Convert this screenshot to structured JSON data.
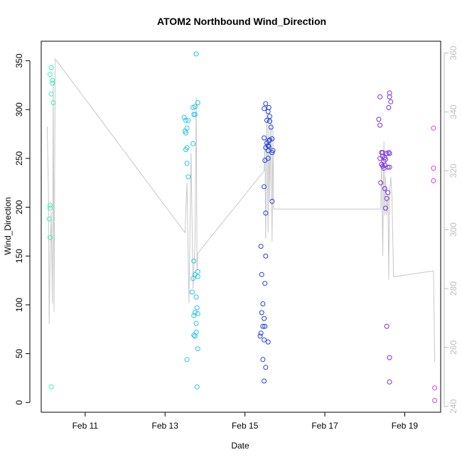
{
  "chart_data": {
    "type": "scatter",
    "title": "ATOM2 Northbound Wind_Direction",
    "xlabel": "Date",
    "ylabel": "Wind_Direction",
    "x_ticks": [
      {
        "label": "Feb 11",
        "value": 11
      },
      {
        "label": "Feb 13",
        "value": 13
      },
      {
        "label": "Feb 15",
        "value": 15
      },
      {
        "label": "Feb 17",
        "value": 17
      },
      {
        "label": "Feb 19",
        "value": 19
      }
    ],
    "y_ticks": [
      "0",
      "50",
      "100",
      "150",
      "200",
      "250",
      "300",
      "350"
    ],
    "y2_ticks": [
      "240",
      "260",
      "280",
      "300",
      "320",
      "340",
      "360"
    ],
    "xlim": [
      9.9,
      19.9
    ],
    "ylim": [
      -10,
      370
    ],
    "y2lim": [
      238,
      364
    ],
    "colors": {
      "frame": "#000000",
      "secondary_axis": "#bdbdbd",
      "line": "#c8c8c8"
    },
    "point_groups": [
      {
        "color": "#33f0b8",
        "points": [
          [
            10.15,
            343
          ],
          [
            10.12,
            336
          ],
          [
            10.18,
            330
          ],
          [
            10.18,
            327
          ],
          [
            10.15,
            316
          ],
          [
            10.2,
            307
          ],
          [
            10.12,
            202
          ],
          [
            10.12,
            199
          ],
          [
            10.1,
            188
          ],
          [
            10.12,
            169
          ],
          [
            10.15,
            16
          ]
        ]
      },
      {
        "color": "#22c6ec",
        "points": [
          [
            13.78,
            357
          ],
          [
            13.82,
            307
          ],
          [
            13.75,
            303
          ],
          [
            13.7,
            302
          ],
          [
            13.72,
            295
          ],
          [
            13.75,
            295
          ],
          [
            13.48,
            292
          ],
          [
            13.52,
            289
          ],
          [
            13.58,
            289
          ],
          [
            13.55,
            281
          ],
          [
            13.5,
            278
          ],
          [
            13.52,
            276
          ],
          [
            13.7,
            265
          ],
          [
            13.55,
            261
          ],
          [
            13.52,
            259
          ],
          [
            13.55,
            245
          ],
          [
            13.58,
            231
          ],
          [
            13.72,
            145
          ],
          [
            13.82,
            134
          ],
          [
            13.75,
            131
          ],
          [
            13.82,
            129
          ],
          [
            13.7,
            127
          ],
          [
            13.68,
            113
          ],
          [
            13.78,
            108
          ],
          [
            13.8,
            97
          ],
          [
            13.75,
            92
          ],
          [
            13.82,
            91
          ],
          [
            13.72,
            89
          ],
          [
            13.78,
            81
          ],
          [
            13.78,
            72
          ],
          [
            13.72,
            69
          ],
          [
            13.75,
            68
          ],
          [
            13.82,
            55
          ],
          [
            13.55,
            44
          ],
          [
            13.8,
            16
          ]
        ]
      },
      {
        "color": "#1f3ee6",
        "points": [
          [
            15.52,
            306
          ],
          [
            15.48,
            301
          ],
          [
            15.6,
            302
          ],
          [
            15.58,
            298
          ],
          [
            15.62,
            293
          ],
          [
            15.62,
            288
          ],
          [
            15.55,
            289
          ],
          [
            15.65,
            282
          ],
          [
            15.48,
            271
          ],
          [
            15.6,
            268
          ],
          [
            15.68,
            270
          ],
          [
            15.62,
            269
          ],
          [
            15.55,
            266
          ],
          [
            15.58,
            263
          ],
          [
            15.6,
            262
          ],
          [
            15.52,
            261
          ],
          [
            15.58,
            258
          ],
          [
            15.7,
            258
          ],
          [
            15.68,
            256
          ],
          [
            15.58,
            250
          ],
          [
            15.5,
            248
          ],
          [
            15.48,
            221
          ],
          [
            15.68,
            206
          ],
          [
            15.52,
            194
          ],
          [
            15.4,
            160
          ],
          [
            15.52,
            150
          ],
          [
            15.42,
            131
          ],
          [
            15.5,
            122
          ],
          [
            15.45,
            101
          ],
          [
            15.42,
            92
          ],
          [
            15.48,
            86
          ],
          [
            15.45,
            78
          ],
          [
            15.5,
            78
          ],
          [
            15.4,
            71
          ],
          [
            15.38,
            68
          ],
          [
            15.48,
            64
          ],
          [
            15.58,
            62
          ],
          [
            15.45,
            44
          ],
          [
            15.52,
            36
          ],
          [
            15.48,
            22
          ]
        ]
      },
      {
        "color": "#7a2ee6",
        "points": [
          [
            18.62,
            317
          ],
          [
            18.62,
            313
          ],
          [
            18.38,
            313
          ],
          [
            18.65,
            308
          ],
          [
            18.6,
            302
          ],
          [
            18.35,
            290
          ],
          [
            18.38,
            284
          ],
          [
            18.45,
            256
          ],
          [
            18.42,
            256
          ],
          [
            18.6,
            256
          ],
          [
            18.55,
            255
          ],
          [
            18.62,
            255
          ],
          [
            18.45,
            252
          ],
          [
            18.5,
            251
          ],
          [
            18.38,
            250
          ],
          [
            18.52,
            249
          ],
          [
            18.48,
            247
          ],
          [
            18.42,
            244
          ],
          [
            18.5,
            243
          ],
          [
            18.45,
            242
          ],
          [
            18.58,
            241
          ],
          [
            18.48,
            240
          ],
          [
            18.62,
            241
          ],
          [
            18.4,
            225
          ],
          [
            18.5,
            219
          ],
          [
            18.58,
            215
          ],
          [
            18.55,
            209
          ],
          [
            18.52,
            199
          ],
          [
            18.55,
            78
          ],
          [
            18.62,
            46
          ],
          [
            18.62,
            21
          ]
        ]
      },
      {
        "color": "#d63cf0",
        "points": [
          [
            19.72,
            281
          ],
          [
            19.72,
            240
          ],
          [
            19.72,
            227
          ],
          [
            19.75,
            15
          ],
          [
            19.75,
            2
          ]
        ]
      }
    ],
    "line_series": {
      "name": "secondary",
      "points": [
        [
          10.05,
          335
        ],
        [
          10.08,
          315
        ],
        [
          10.1,
          268
        ],
        [
          10.12,
          290
        ],
        [
          10.15,
          306
        ],
        [
          10.18,
          275
        ],
        [
          10.2,
          350
        ],
        [
          10.22,
          272
        ],
        [
          10.25,
          358
        ],
        [
          13.5,
          299
        ],
        [
          13.55,
          316
        ],
        [
          13.6,
          275
        ],
        [
          13.65,
          326
        ],
        [
          13.7,
          280
        ],
        [
          13.75,
          296
        ],
        [
          13.78,
          345
        ],
        [
          13.8,
          286
        ],
        [
          13.82,
          292
        ],
        [
          15.48,
          320
        ],
        [
          15.5,
          330
        ],
        [
          15.52,
          297
        ],
        [
          15.55,
          340
        ],
        [
          15.58,
          299
        ],
        [
          15.6,
          335
        ],
        [
          15.62,
          310
        ],
        [
          15.65,
          338
        ],
        [
          15.68,
          296
        ],
        [
          15.7,
          335
        ],
        [
          15.72,
          307
        ],
        [
          18.4,
          307
        ],
        [
          18.42,
          324
        ],
        [
          18.45,
          291
        ],
        [
          18.48,
          330
        ],
        [
          18.5,
          305
        ],
        [
          18.52,
          318
        ],
        [
          18.55,
          305
        ],
        [
          18.58,
          312
        ],
        [
          18.6,
          283
        ],
        [
          18.62,
          312
        ],
        [
          18.65,
          318
        ],
        [
          18.68,
          312
        ],
        [
          18.72,
          284
        ],
        [
          19.72,
          286
        ],
        [
          19.75,
          255
        ]
      ]
    }
  }
}
